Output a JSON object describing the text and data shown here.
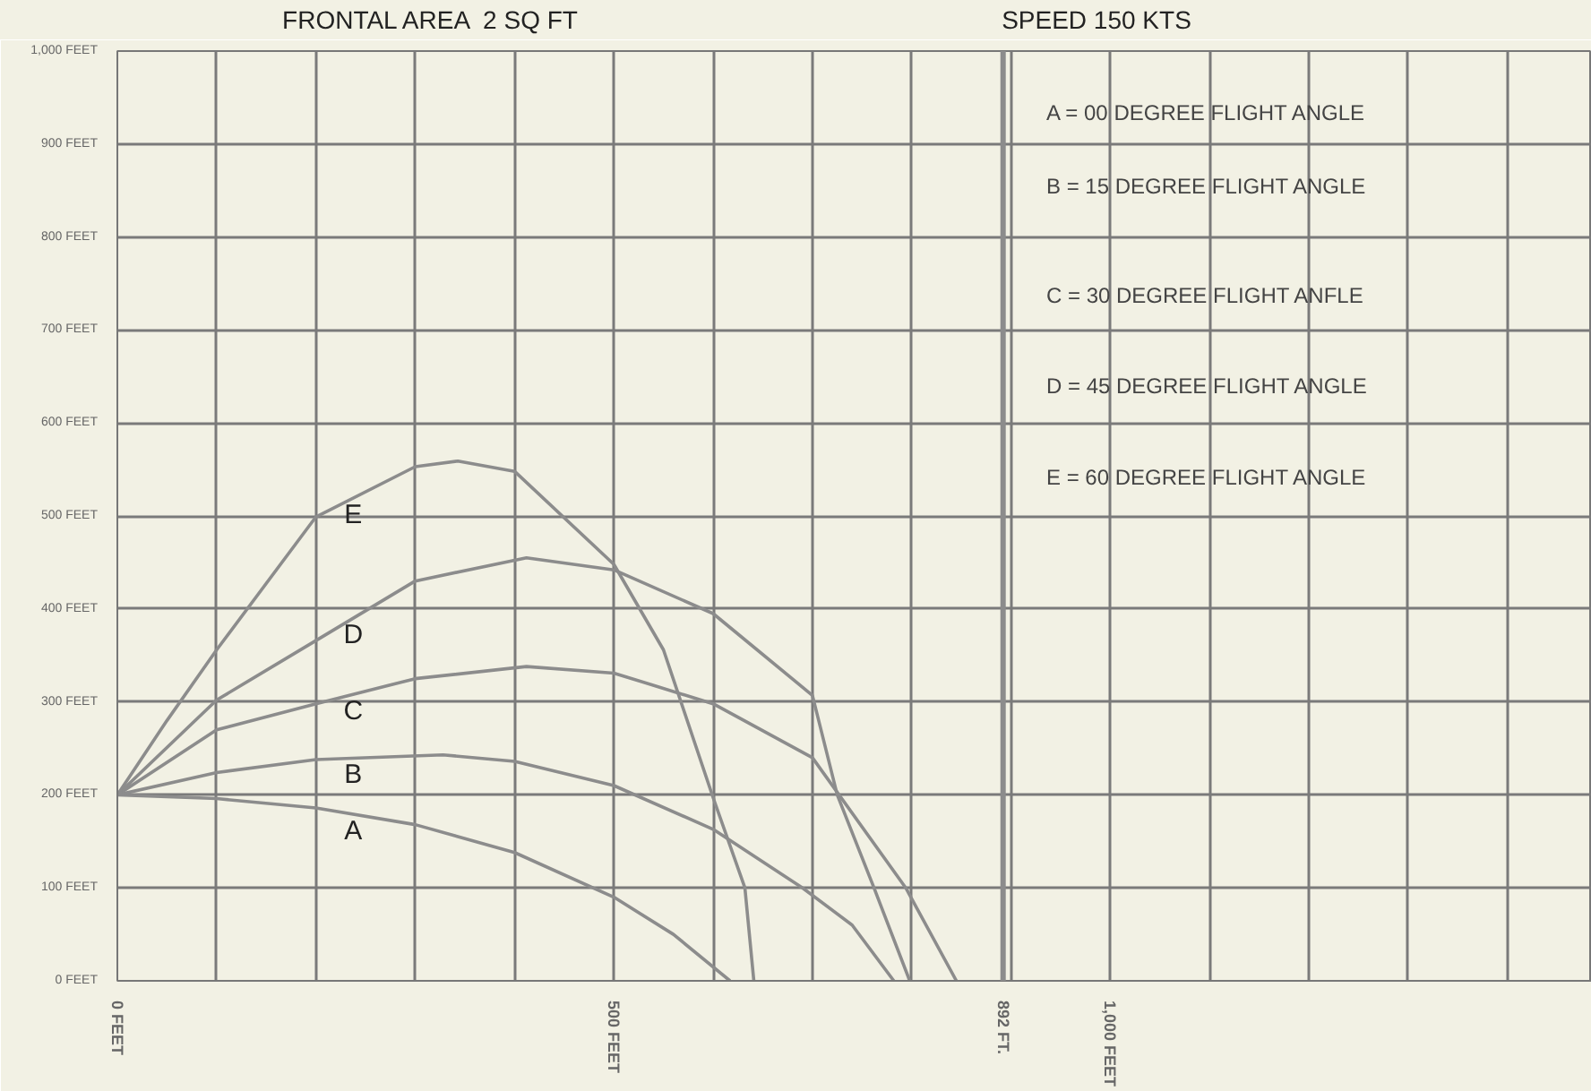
{
  "chart_data": {
    "type": "line",
    "title": "FRONTAL AREA  2 SQ FT",
    "subtitle": "SPEED 150 KTS",
    "xlim": [
      0,
      1485
    ],
    "ylim": [
      0,
      1000
    ],
    "xticks": [
      {
        "value": 0,
        "label": "0 FEET"
      },
      {
        "value": 100,
        "label": null
      },
      {
        "value": 200,
        "label": null
      },
      {
        "value": 300,
        "label": null
      },
      {
        "value": 400,
        "label": null
      },
      {
        "value": 500,
        "label": "500 FEET"
      },
      {
        "value": 600,
        "label": null
      },
      {
        "value": 700,
        "label": null
      },
      {
        "value": 800,
        "label": null
      },
      {
        "value": 900,
        "label": null
      },
      {
        "value": 1000,
        "label": "1,000 FEET"
      },
      {
        "value": 1100,
        "label": null
      },
      {
        "value": 1200,
        "label": null
      },
      {
        "value": 1300,
        "label": null
      },
      {
        "value": 1400,
        "label": null
      }
    ],
    "yticks": [
      {
        "value": 0,
        "label": "0 FEET"
      },
      {
        "value": 100,
        "label": "100 FEET"
      },
      {
        "value": 200,
        "label": "200 FEET"
      },
      {
        "value": 300,
        "label": "300 FEET"
      },
      {
        "value": 400,
        "label": "400 FEET"
      },
      {
        "value": 500,
        "label": "500 FEET"
      },
      {
        "value": 600,
        "label": "600 FEET"
      },
      {
        "value": 700,
        "label": "700 FEET"
      },
      {
        "value": 800,
        "label": "800 FEET"
      },
      {
        "value": 900,
        "label": "900 FEET"
      },
      {
        "value": 1000,
        "label": "1,000 FEET"
      }
    ],
    "grid": true,
    "legend": false,
    "marker": "none",
    "line_style": "solid",
    "series": [
      {
        "name": "A",
        "color": "#8c8c8c",
        "x": [
          0,
          100,
          200,
          300,
          400,
          500,
          560,
          617
        ],
        "values": [
          200,
          196,
          186,
          168,
          138,
          90,
          50,
          0
        ]
      },
      {
        "name": "B",
        "color": "#8c8c8c",
        "x": [
          0,
          100,
          200,
          328,
          400,
          500,
          600,
          690,
          740,
          782
        ],
        "values": [
          200,
          224,
          238,
          243,
          236,
          210,
          163,
          100,
          60,
          0
        ]
      },
      {
        "name": "C",
        "color": "#8c8c8c",
        "x": [
          0,
          100,
          200,
          300,
          412,
          500,
          600,
          700,
          794,
          845
        ],
        "values": [
          200,
          270,
          298,
          325,
          338,
          331,
          298,
          240,
          100,
          0
        ]
      },
      {
        "name": "D",
        "color": "#8c8c8c",
        "x": [
          0,
          100,
          200,
          300,
          412,
          500,
          600,
          700,
          725,
          762,
          798
        ],
        "values": [
          200,
          302,
          366,
          430,
          455,
          442,
          395,
          307,
          200,
          100,
          0
        ]
      },
      {
        "name": "E",
        "color": "#8c8c8c",
        "x": [
          0,
          50,
          100,
          200,
          300,
          343,
          400,
          500,
          550,
          600,
          632,
          641
        ],
        "values": [
          200,
          280,
          356,
          499,
          553,
          559,
          548,
          448,
          356,
          197,
          100,
          0
        ]
      }
    ],
    "ref_lines": [
      {
        "axis": "x",
        "value": 892,
        "label": "892 FT.",
        "color": "#8c8c8c"
      }
    ],
    "annotations": [
      "A = 00 DEGREE FLIGHT ANGLE",
      "B = 15 DEGREE FLIGHT ANGLE",
      "C = 30 DEGREE FLIGHT ANFLE",
      "D = 45 DEGREE FLIGHT ANGLE",
      "E = 60 DEGREE FLIGHT ANGLE"
    ]
  }
}
